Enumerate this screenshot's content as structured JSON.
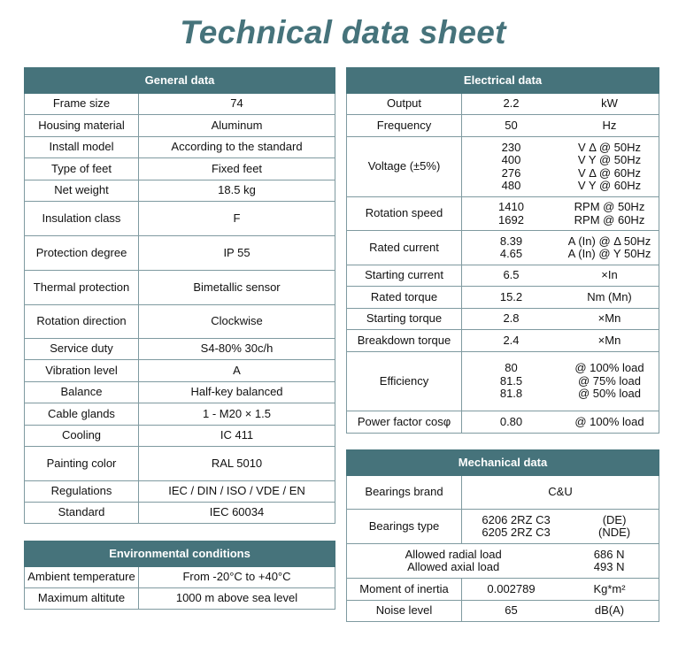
{
  "title": "Technical data sheet",
  "accent_color": "#46737b",
  "general": {
    "header": "General data",
    "rows": [
      {
        "label": "Frame size",
        "value": "74"
      },
      {
        "label": "Housing material",
        "value": "Aluminum"
      },
      {
        "label": "Install model",
        "value": "According to the standard"
      },
      {
        "label": "Type of feet",
        "value": "Fixed feet"
      },
      {
        "label": "Net weight",
        "value": "18.5 kg"
      },
      {
        "label": "Insulation class",
        "value": "F"
      },
      {
        "label": "Protection degree",
        "value": "IP 55"
      },
      {
        "label": "Thermal protection",
        "value": "Bimetallic sensor"
      },
      {
        "label": "Rotation direction",
        "value": "Clockwise"
      },
      {
        "label": "Service duty",
        "value": "S4-80% 30c/h"
      },
      {
        "label": "Vibration level",
        "value": "A"
      },
      {
        "label": "Balance",
        "value": "Half-key balanced"
      },
      {
        "label": "Cable glands",
        "value": "1 - M20 × 1.5"
      },
      {
        "label": "Cooling",
        "value": "IC 411"
      },
      {
        "label": "Painting color",
        "value": "RAL 5010"
      },
      {
        "label": "Regulations",
        "value": "IEC / DIN / ISO / VDE / EN"
      },
      {
        "label": "Standard",
        "value": "IEC 60034"
      }
    ]
  },
  "environment": {
    "header": "Environmental conditions",
    "rows": [
      {
        "label": "Ambient temperature",
        "value": "From -20°C to +40°C"
      },
      {
        "label": "Maximum altitute",
        "value": "1000 m above sea level"
      }
    ]
  },
  "electrical": {
    "header": "Electrical data",
    "rows": [
      {
        "label": "Output",
        "values": [
          "2.2"
        ],
        "units": [
          "kW"
        ]
      },
      {
        "label": "Frequency",
        "values": [
          "50"
        ],
        "units": [
          "Hz"
        ]
      },
      {
        "label": "Voltage (±5%)",
        "values": [
          "230",
          "400",
          "276",
          "480"
        ],
        "units": [
          "V Δ @ 50Hz",
          "V Y @ 50Hz",
          "V Δ @ 60Hz",
          "V Y @ 60Hz"
        ]
      },
      {
        "label": "Rotation speed",
        "values": [
          "1410",
          "1692"
        ],
        "units": [
          "RPM @ 50Hz",
          "RPM @ 60Hz"
        ]
      },
      {
        "label": "Rated current",
        "values": [
          "8.39",
          "4.65"
        ],
        "units": [
          "A (In) @ Δ 50Hz",
          "A (In) @ Y 50Hz"
        ]
      },
      {
        "label": "Starting current",
        "values": [
          "6.5"
        ],
        "units": [
          "×In"
        ]
      },
      {
        "label": "Rated torque",
        "values": [
          "15.2"
        ],
        "units": [
          "Nm (Mn)"
        ]
      },
      {
        "label": "Starting torque",
        "values": [
          "2.8"
        ],
        "units": [
          "×Mn"
        ]
      },
      {
        "label": "Breakdown torque",
        "values": [
          "2.4"
        ],
        "units": [
          "×Mn"
        ]
      },
      {
        "label": "Efficiency",
        "values": [
          "80",
          "81.5",
          "81.8"
        ],
        "units": [
          "@ 100% load",
          "@ 75% load",
          "@ 50% load"
        ]
      },
      {
        "label": "Power factor cosφ",
        "values": [
          "0.80"
        ],
        "units": [
          "@ 100% load"
        ]
      }
    ]
  },
  "mechanical": {
    "header": "Mechanical data",
    "bearings_brand": {
      "label": "Bearings brand",
      "value": "C&U"
    },
    "bearings_type": {
      "label": "Bearings type",
      "values": [
        "6206 2RZ C3",
        "6205 2RZ C3"
      ],
      "units": [
        "(DE)",
        "(NDE)"
      ]
    },
    "loads": {
      "labels": [
        "Allowed radial load",
        "Allowed axial load"
      ],
      "values": [
        "686 N",
        "493 N"
      ]
    },
    "inertia": {
      "label": "Moment of inertia",
      "values": [
        "0.002789"
      ],
      "units": [
        "Kg*m²"
      ]
    },
    "noise": {
      "label": "Noise level",
      "values": [
        "65"
      ],
      "units": [
        "dB(A)"
      ]
    }
  }
}
